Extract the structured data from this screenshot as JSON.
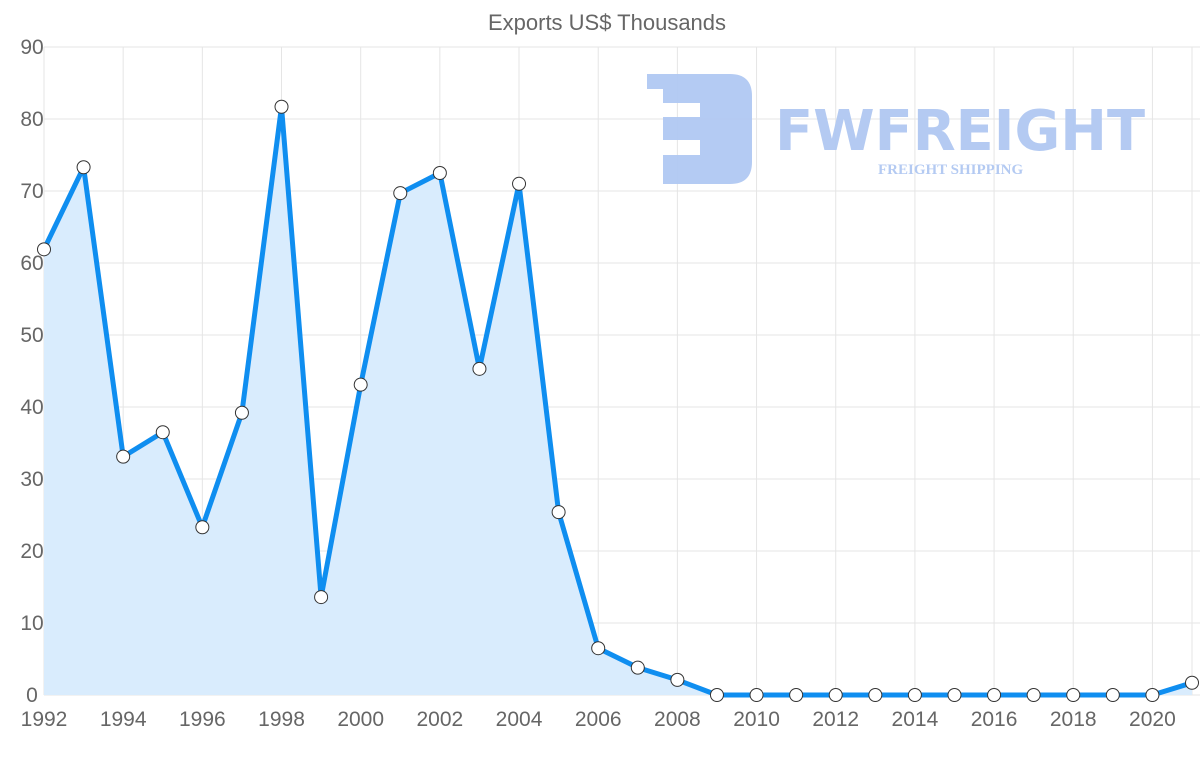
{
  "chart_data": {
    "type": "area",
    "title": "Exports US$ Thousands",
    "xlabel": "",
    "ylabel": "",
    "x": [
      1992,
      1993,
      1994,
      1995,
      1996,
      1997,
      1998,
      1999,
      2000,
      2001,
      2002,
      2003,
      2004,
      2005,
      2006,
      2007,
      2008,
      2009,
      2010,
      2011,
      2012,
      2013,
      2014,
      2015,
      2016,
      2017,
      2018,
      2019,
      2020,
      2021
    ],
    "series": [
      {
        "name": "Exports US$ Thousands",
        "values": [
          61.9,
          73.3,
          33.1,
          36.5,
          23.3,
          39.2,
          81.7,
          13.6,
          43.1,
          69.7,
          72.5,
          45.3,
          71.0,
          25.4,
          6.5,
          3.8,
          2.1,
          0,
          0,
          0,
          0,
          0,
          0,
          0,
          0,
          0,
          0,
          0,
          0,
          1.7
        ],
        "color": "#0f8ef0",
        "fill": "#d9ecfd"
      }
    ],
    "ylim": [
      0,
      90
    ],
    "yticks": [
      "0",
      "10",
      "20",
      "30",
      "40",
      "50",
      "60",
      "70",
      "80",
      "90"
    ],
    "xticks": [
      "1992",
      "1994",
      "1996",
      "1998",
      "2000",
      "2002",
      "2004",
      "2006",
      "2008",
      "2010",
      "2012",
      "2014",
      "2016",
      "2018",
      "2020"
    ],
    "grid": true,
    "legend": "none"
  },
  "watermark": {
    "brand": "FWFREIGHT",
    "tagline": "FREIGHT SHIPPING",
    "color": "#b0c8f2"
  }
}
